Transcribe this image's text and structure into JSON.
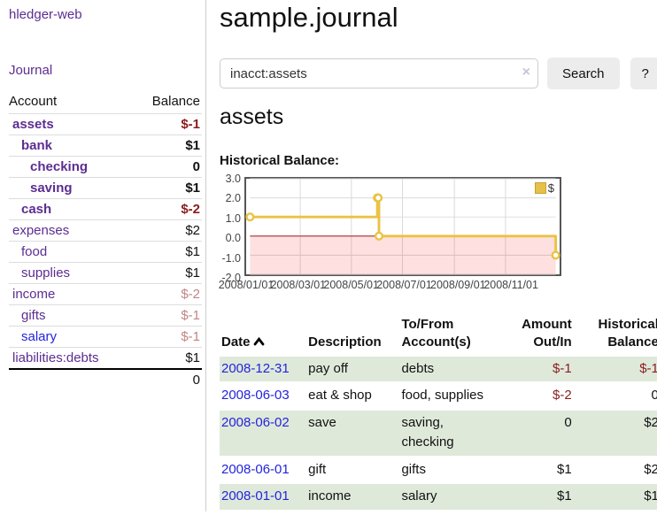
{
  "app": {
    "brand": "hledger-web"
  },
  "sidebar": {
    "journal_link": "Journal",
    "columns": {
      "account": "Account",
      "balance": "Balance"
    },
    "accounts": [
      {
        "name": "assets",
        "indent": 0,
        "bold": true,
        "balance": "$-1",
        "balance_style": "neg-dark",
        "link_style": "purple"
      },
      {
        "name": "bank",
        "indent": 1,
        "bold": true,
        "balance": "$1",
        "balance_style": "pos",
        "link_style": "purple"
      },
      {
        "name": "checking",
        "indent": 2,
        "bold": true,
        "balance": "0",
        "balance_style": "pos",
        "link_style": "purple"
      },
      {
        "name": "saving",
        "indent": 2,
        "bold": true,
        "balance": "$1",
        "balance_style": "pos",
        "link_style": "purple"
      },
      {
        "name": "cash",
        "indent": 1,
        "bold": true,
        "balance": "$-2",
        "balance_style": "neg-dark",
        "link_style": "purple"
      },
      {
        "name": "expenses",
        "indent": 0,
        "bold": false,
        "balance": "$2",
        "balance_style": "pos",
        "link_style": "purple"
      },
      {
        "name": "food",
        "indent": 1,
        "bold": false,
        "balance": "$1",
        "balance_style": "pos",
        "link_style": "purple"
      },
      {
        "name": "supplies",
        "indent": 1,
        "bold": false,
        "balance": "$1",
        "balance_style": "pos",
        "link_style": "purple"
      },
      {
        "name": "income",
        "indent": 0,
        "bold": false,
        "balance": "$-2",
        "balance_style": "neg-soft",
        "link_style": "purple"
      },
      {
        "name": "gifts",
        "indent": 1,
        "bold": false,
        "balance": "$-1",
        "balance_style": "neg-soft",
        "link_style": "purple"
      },
      {
        "name": "salary",
        "indent": 1,
        "bold": false,
        "balance": "$-1",
        "balance_style": "neg-soft",
        "link_style": "blue"
      },
      {
        "name": "liabilities:debts",
        "indent": 0,
        "bold": false,
        "balance": "$1",
        "balance_style": "pos",
        "link_style": "purple"
      }
    ],
    "total": "0"
  },
  "main": {
    "title": "sample.journal",
    "search": {
      "value": "inacct:assets",
      "clear_icon": "×",
      "button": "Search",
      "help": "?"
    },
    "account_heading": "assets",
    "section_label": "Historical Balance:"
  },
  "chart_data": {
    "type": "line",
    "style": "step",
    "title": "Historical Balance",
    "ylim": [
      -2,
      3
    ],
    "yticks": [
      3.0,
      2.0,
      1.0,
      0.0,
      -1.0,
      -2.0
    ],
    "ytick_labels": [
      "3.0",
      "2.0",
      "1.0",
      "0.0",
      "-1.0",
      "-2.0"
    ],
    "xrange": [
      "2008-01-01",
      "2008-12-31"
    ],
    "xticks": [
      "2008-01-01",
      "2008-03-01",
      "2008-05-01",
      "2008-07-01",
      "2008-09-01",
      "2008-11-01"
    ],
    "xtick_labels": [
      "2008/01/01",
      "2008/03/01",
      "2008/05/01",
      "2008/07/01",
      "2008/09/01",
      "2008/11/01"
    ],
    "grid": true,
    "legend_position": "top-right",
    "series": [
      {
        "name": "$",
        "color": "#e9c344",
        "points": [
          [
            "2008-01-01",
            1
          ],
          [
            "2008-06-01",
            2
          ],
          [
            "2008-06-02",
            2
          ],
          [
            "2008-06-03",
            0
          ],
          [
            "2008-12-31",
            -1
          ]
        ]
      }
    ],
    "zero_line_color": "#8b0000",
    "negative_region_color": "rgba(255,0,0,0.12)"
  },
  "register": {
    "columns": [
      "Date",
      "Description",
      "To/From Account(s)",
      "Amount Out/In",
      "Historical Balance"
    ],
    "rows": [
      {
        "date": "2008-12-31",
        "description": "pay off",
        "accounts": "debts",
        "amount": "$-1",
        "amount_negative": true,
        "balance": "$-1",
        "balance_negative": true
      },
      {
        "date": "2008-06-03",
        "description": "eat & shop",
        "accounts": "food, supplies",
        "amount": "$-2",
        "amount_negative": true,
        "balance": "0",
        "balance_negative": false
      },
      {
        "date": "2008-06-02",
        "description": "save",
        "accounts": "saving, checking",
        "amount": "0",
        "amount_negative": false,
        "balance": "$2",
        "balance_negative": false
      },
      {
        "date": "2008-06-01",
        "description": "gift",
        "accounts": "gifts",
        "amount": "$1",
        "amount_negative": false,
        "balance": "$2",
        "balance_negative": false
      },
      {
        "date": "2008-01-01",
        "description": "income",
        "accounts": "salary",
        "amount": "$1",
        "amount_negative": false,
        "balance": "$1",
        "balance_negative": false
      }
    ]
  },
  "colors": {
    "purple_link": "#5c2d91",
    "blue_link": "#2424dd",
    "negative_dark": "#8b1c1c",
    "negative_soft": "#c28585",
    "row_highlight": "#dfe9da",
    "series_gold": "#e9c344",
    "button_bg": "#ececec"
  }
}
